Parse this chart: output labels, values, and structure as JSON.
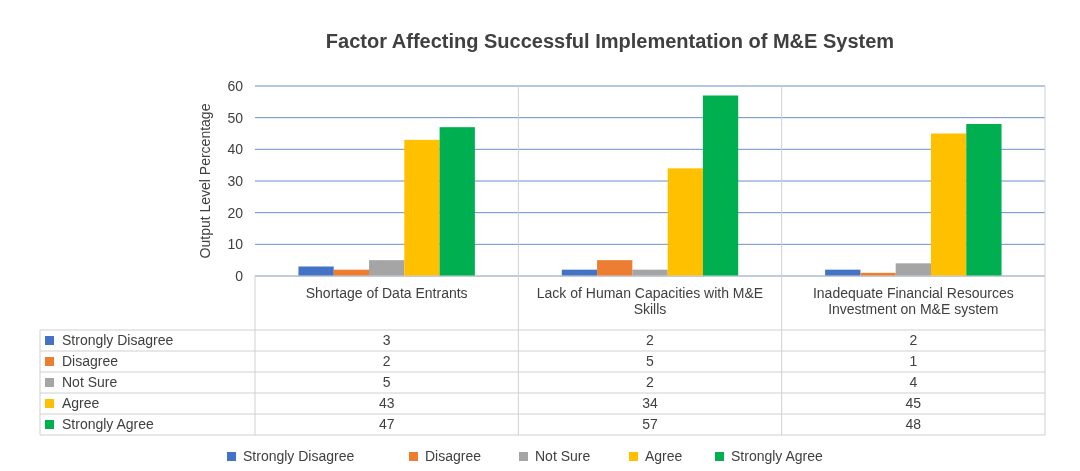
{
  "chart_data": {
    "type": "bar",
    "title": "Factor Affecting Successful Implementation of M&E System",
    "ylabel": "Output Level Percentage",
    "categories": [
      "Shortage of Data Entrants",
      "Lack of Human Capacities with M&E Skills",
      "Inadequate Financial Resources Investment on M&E system"
    ],
    "series": [
      {
        "name": "Strongly Disagree",
        "color": "#4472c4",
        "values": [
          3,
          2,
          2
        ]
      },
      {
        "name": "Disagree",
        "color": "#ed7d31",
        "values": [
          2,
          5,
          1
        ]
      },
      {
        "name": "Not Sure",
        "color": "#a5a5a5",
        "values": [
          5,
          2,
          4
        ]
      },
      {
        "name": "Agree",
        "color": "#ffc000",
        "values": [
          43,
          34,
          45
        ]
      },
      {
        "name": "Strongly Agree",
        "color": "#00b050",
        "values": [
          47,
          57,
          48
        ]
      }
    ],
    "ylim": [
      0,
      60
    ],
    "yticks": [
      0,
      10,
      20,
      30,
      40,
      50,
      60
    ],
    "grid": "y",
    "legend": "bottom",
    "data_labels": true
  }
}
